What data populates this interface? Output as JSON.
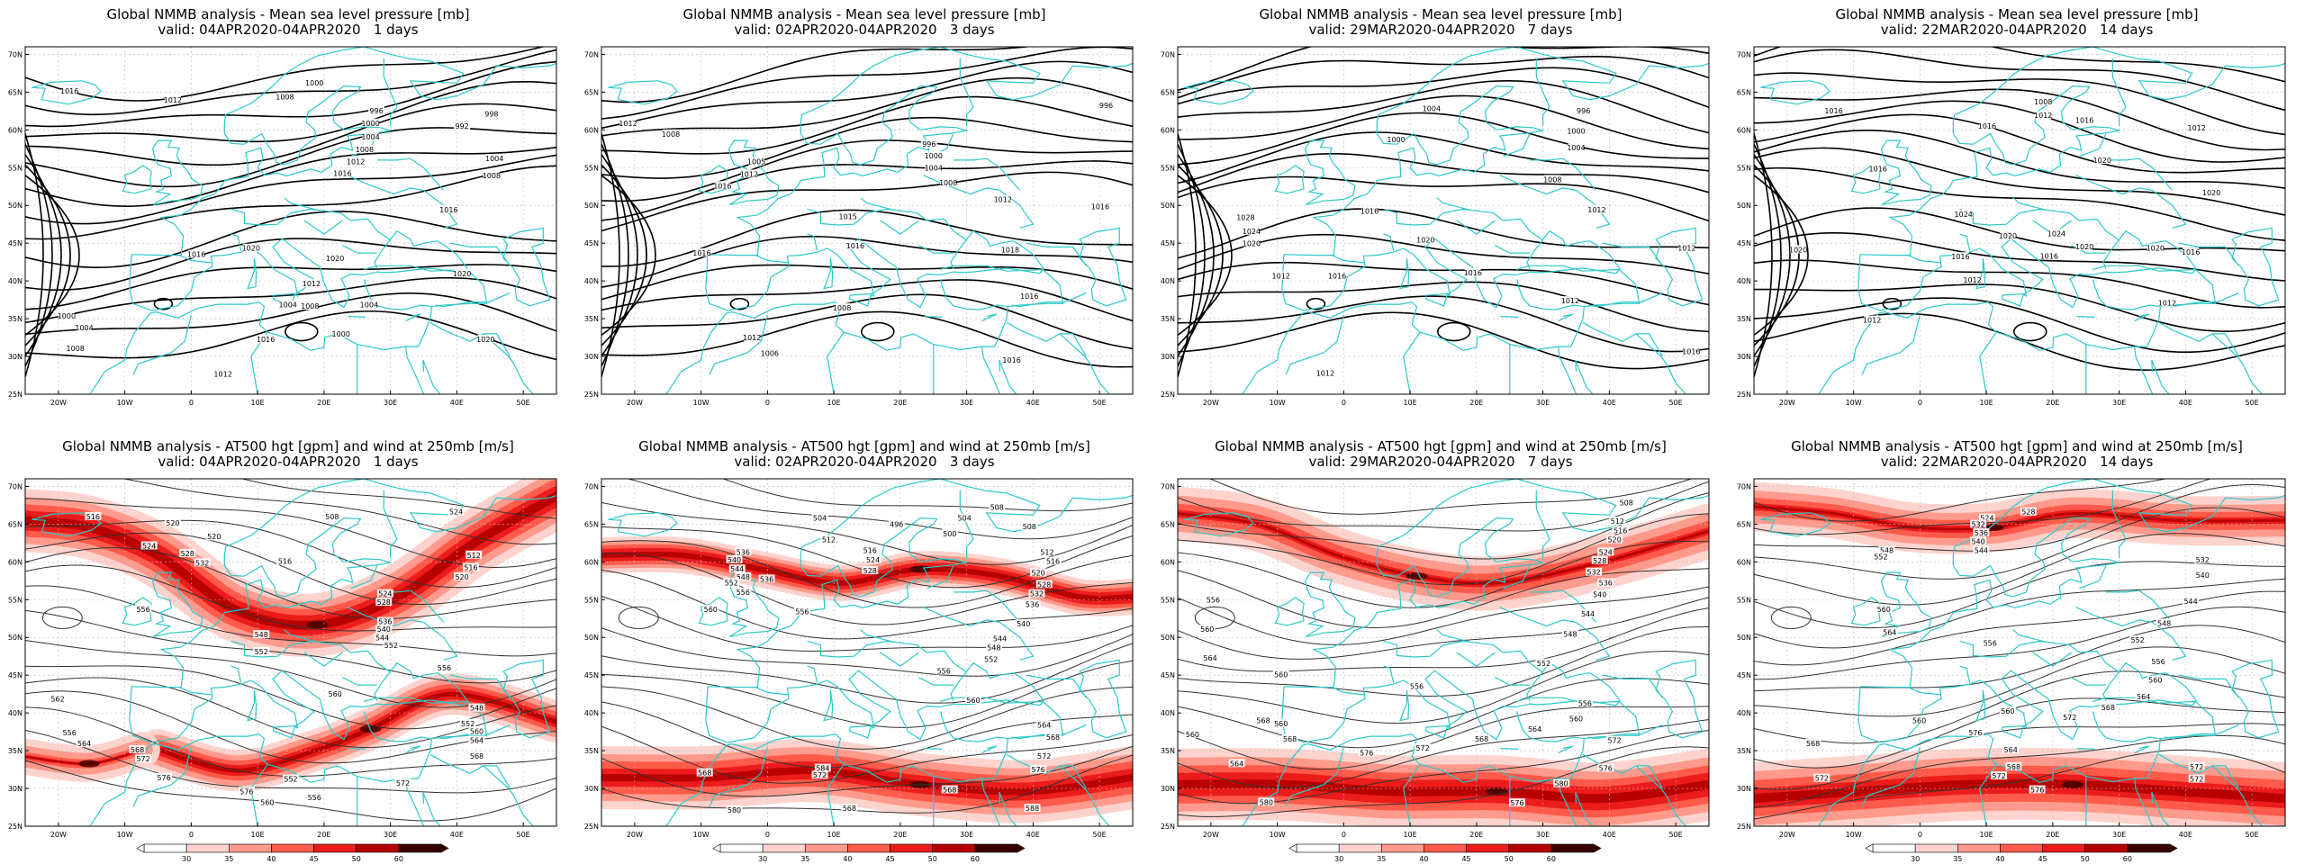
{
  "panels": [
    {
      "title": "Global NMMB analysis - Mean sea level pressure [mb]",
      "valid": "valid: 04APR2020-04APR2020   1 days",
      "kind": "mslp",
      "labels": [
        [
          "1016",
          30,
          58
        ],
        [
          "1012",
          100,
          70
        ],
        [
          "1000",
          196,
          48
        ],
        [
          "1008",
          176,
          66
        ],
        [
          "996",
          238,
          84
        ],
        [
          "1000",
          234,
          100
        ],
        [
          "1004",
          234,
          118
        ],
        [
          "1008",
          230,
          134
        ],
        [
          "1012",
          224,
          150
        ],
        [
          "1016",
          215,
          165
        ],
        [
          "1020",
          153,
          262
        ],
        [
          "1016",
          116,
          270
        ],
        [
          "1020",
          210,
          275
        ],
        [
          "1020",
          296,
          295
        ],
        [
          "1012",
          194,
          308
        ],
        [
          "1004",
          233,
          335
        ],
        [
          "1000",
          214,
          373
        ],
        [
          "1008",
          193,
          337
        ],
        [
          "1016",
          163,
          380
        ],
        [
          "1008",
          34,
          392
        ],
        [
          "1000",
          28,
          350
        ],
        [
          "1004",
          40,
          365
        ],
        [
          "1012",
          134,
          425
        ],
        [
          "1020",
          312,
          380
        ],
        [
          "998",
          316,
          88
        ],
        [
          "992",
          296,
          104
        ],
        [
          "1004",
          318,
          146
        ],
        [
          "1008",
          316,
          168
        ],
        [
          "1016",
          287,
          212
        ],
        [
          "1004",
          178,
          335
        ]
      ]
    },
    {
      "title": "Global NMMB analysis - Mean sea level pressure [mb]",
      "valid": "valid: 02APR2020-04APR2020   3 days",
      "kind": "mslp",
      "labels": [
        [
          "1012",
          18,
          100
        ],
        [
          "1008",
          47,
          114
        ],
        [
          "1005",
          105,
          150
        ],
        [
          "1012",
          100,
          166
        ],
        [
          "1016",
          82,
          181
        ],
        [
          "996",
          222,
          127
        ],
        [
          "1000",
          225,
          142
        ],
        [
          "1004",
          225,
          158
        ],
        [
          "1008",
          235,
          177
        ],
        [
          "1012",
          272,
          199
        ],
        [
          "1016",
          338,
          208
        ],
        [
          "996",
          342,
          77
        ],
        [
          "1015",
          167,
          221
        ],
        [
          "1016",
          172,
          259
        ],
        [
          "1018",
          277,
          264
        ],
        [
          "1016",
          68,
          268
        ],
        [
          "1016",
          290,
          324
        ],
        [
          "1008",
          163,
          339
        ],
        [
          "1006",
          114,
          398
        ],
        [
          "1012",
          102,
          378
        ],
        [
          "1016",
          278,
          407
        ]
      ]
    },
    {
      "title": "Global NMMB analysis - Mean sea level pressure [mb]",
      "valid": "valid: 29MAR2020-04APR2020   7 days",
      "kind": "mslp",
      "labels": [
        [
          "1004",
          172,
          81
        ],
        [
          "1000",
          148,
          121
        ],
        [
          "1004",
          270,
          132
        ],
        [
          "1000",
          270,
          110
        ],
        [
          "996",
          275,
          84
        ],
        [
          "1008",
          254,
          173
        ],
        [
          "1012",
          284,
          212
        ],
        [
          "1016",
          130,
          214
        ],
        [
          "1028",
          46,
          222
        ],
        [
          "1024",
          50,
          240
        ],
        [
          "1020",
          50,
          256
        ],
        [
          "1020",
          168,
          251
        ],
        [
          "1016",
          200,
          294
        ],
        [
          "1016",
          108,
          298
        ],
        [
          "1012",
          70,
          298
        ],
        [
          "1012",
          266,
          330
        ],
        [
          "1012",
          100,
          424
        ],
        [
          "1016",
          348,
          396
        ],
        [
          "1012",
          345,
          262
        ]
      ]
    },
    {
      "title": "Global NMMB analysis - Mean sea level pressure [mb]",
      "valid": "valid: 22MAR2020-04APR2020   14 days",
      "kind": "mslp",
      "labels": [
        [
          "1016",
          54,
          84
        ],
        [
          "1012",
          196,
          90
        ],
        [
          "1008",
          196,
          72
        ],
        [
          "1016",
          158,
          104
        ],
        [
          "1016",
          224,
          96
        ],
        [
          "1012",
          300,
          106
        ],
        [
          "1016",
          84,
          159
        ],
        [
          "1020",
          236,
          148
        ],
        [
          "1020",
          310,
          190
        ],
        [
          "1024",
          142,
          218
        ],
        [
          "1020",
          172,
          246
        ],
        [
          "1024",
          205,
          243
        ],
        [
          "1020",
          224,
          260
        ],
        [
          "1020",
          272,
          262
        ],
        [
          "1016",
          296,
          267
        ],
        [
          "1016",
          140,
          273
        ],
        [
          "1016",
          200,
          272
        ],
        [
          "1012",
          80,
          355
        ],
        [
          "1012",
          148,
          303
        ],
        [
          "1012",
          280,
          333
        ],
        [
          "1020",
          30,
          264
        ]
      ]
    },
    {
      "title": "Global NMMB analysis - AT500 hgt [gpm] and wind at 250mb [m/s]",
      "valid": "valid: 04APR2020-04APR2020   1 days",
      "kind": "hgt",
      "labels": [
        [
          "516",
          46,
          50
        ],
        [
          "520",
          100,
          58
        ],
        [
          "508",
          208,
          50
        ],
        [
          "524",
          292,
          44
        ],
        [
          "512",
          304,
          100
        ],
        [
          "516",
          302,
          116
        ],
        [
          "520",
          296,
          128
        ],
        [
          "524",
          244,
          150
        ],
        [
          "528",
          243,
          161
        ],
        [
          "536",
          244,
          186
        ],
        [
          "540",
          243,
          196
        ],
        [
          "544",
          242,
          207
        ],
        [
          "552",
          248,
          217
        ],
        [
          "556",
          284,
          246
        ],
        [
          "560",
          210,
          280
        ],
        [
          "556",
          80,
          170
        ],
        [
          "548",
          160,
          203
        ],
        [
          "552",
          160,
          225
        ],
        [
          "562",
          22,
          286
        ],
        [
          "564",
          40,
          344
        ],
        [
          "568",
          76,
          352
        ],
        [
          "572",
          80,
          364
        ],
        [
          "576",
          94,
          388
        ],
        [
          "556",
          30,
          330
        ],
        [
          "548",
          306,
          298
        ],
        [
          "552",
          300,
          318
        ],
        [
          "560",
          306,
          328
        ],
        [
          "564",
          306,
          340
        ],
        [
          "568",
          306,
          360
        ],
        [
          "572",
          256,
          395
        ],
        [
          "576",
          150,
          406
        ],
        [
          "560",
          164,
          420
        ],
        [
          "532",
          120,
          110
        ],
        [
          "528",
          110,
          98
        ],
        [
          "524",
          84,
          88
        ],
        [
          "520",
          128,
          76
        ],
        [
          "516",
          176,
          108
        ],
        [
          "552",
          180,
          390
        ],
        [
          "556",
          196,
          414
        ]
      ],
      "colorbar": [
        "30",
        "35",
        "40",
        "45",
        "50",
        "60"
      ]
    },
    {
      "title": "Global NMMB analysis - AT500 hgt [gpm] and wind at 250mb [m/s]",
      "valid": "valid: 02APR2020-04APR2020   3 days",
      "kind": "hgt",
      "labels": [
        [
          "504",
          148,
          52
        ],
        [
          "508",
          268,
          38
        ],
        [
          "496",
          200,
          60
        ],
        [
          "500",
          236,
          72
        ],
        [
          "512",
          154,
          80
        ],
        [
          "516",
          182,
          94
        ],
        [
          "524",
          184,
          106
        ],
        [
          "528",
          182,
          120
        ],
        [
          "536",
          96,
          96
        ],
        [
          "540",
          90,
          106
        ],
        [
          "544",
          92,
          118
        ],
        [
          "548",
          96,
          128
        ],
        [
          "552",
          88,
          136
        ],
        [
          "556",
          96,
          148
        ],
        [
          "536",
          112,
          131
        ],
        [
          "508",
          290,
          63
        ],
        [
          "504",
          246,
          52
        ],
        [
          "512",
          302,
          96
        ],
        [
          "516",
          306,
          108
        ],
        [
          "520",
          296,
          123
        ],
        [
          "528",
          300,
          138
        ],
        [
          "532",
          295,
          150
        ],
        [
          "536",
          292,
          164
        ],
        [
          "540",
          286,
          189
        ],
        [
          "544",
          270,
          208
        ],
        [
          "548",
          266,
          220
        ],
        [
          "552",
          264,
          235
        ],
        [
          "556",
          232,
          250
        ],
        [
          "560",
          252,
          288
        ],
        [
          "556",
          136,
          173
        ],
        [
          "560",
          74,
          170
        ],
        [
          "564",
          300,
          320
        ],
        [
          "568",
          306,
          336
        ],
        [
          "572",
          300,
          360
        ],
        [
          "576",
          296,
          378
        ],
        [
          "568",
          70,
          382
        ],
        [
          "572",
          148,
          385
        ],
        [
          "568",
          168,
          428
        ],
        [
          "580",
          90,
          430
        ],
        [
          "584",
          150,
          376
        ],
        [
          "568",
          236,
          404
        ],
        [
          "588",
          292,
          428
        ]
      ],
      "colorbar": [
        "30",
        "35",
        "40",
        "45",
        "50",
        "60"
      ]
    },
    {
      "title": "Global NMMB analysis - AT500 hgt [gpm] and wind at 250mb [m/s]",
      "valid": "valid: 29MAR2020-04APR2020   7 days",
      "kind": "hgt",
      "labels": [
        [
          "508",
          304,
          32
        ],
        [
          "512",
          298,
          56
        ],
        [
          "516",
          300,
          68
        ],
        [
          "520",
          296,
          80
        ],
        [
          "524",
          290,
          96
        ],
        [
          "528",
          286,
          107
        ],
        [
          "532",
          282,
          122
        ],
        [
          "536",
          290,
          136
        ],
        [
          "540",
          286,
          151
        ],
        [
          "544",
          278,
          176
        ],
        [
          "548",
          266,
          202
        ],
        [
          "552",
          248,
          240
        ],
        [
          "556",
          276,
          292
        ],
        [
          "560",
          270,
          312
        ],
        [
          "564",
          242,
          325
        ],
        [
          "568",
          206,
          338
        ],
        [
          "572",
          166,
          350
        ],
        [
          "576",
          128,
          356
        ],
        [
          "580",
          60,
          420
        ],
        [
          "568",
          76,
          338
        ],
        [
          "564",
          40,
          370
        ],
        [
          "560",
          10,
          332
        ],
        [
          "556",
          162,
          270
        ],
        [
          "560",
          70,
          318
        ],
        [
          "556",
          24,
          158
        ],
        [
          "560",
          20,
          196
        ],
        [
          "564",
          22,
          233
        ],
        [
          "568",
          58,
          314
        ],
        [
          "572",
          296,
          340
        ],
        [
          "576",
          290,
          376
        ],
        [
          "580",
          260,
          396
        ],
        [
          "576",
          230,
          421
        ],
        [
          "560",
          70,
          255
        ]
      ],
      "colorbar": [
        "30",
        "35",
        "40",
        "45",
        "50",
        "60"
      ]
    },
    {
      "title": "Global NMMB analysis - AT500 hgt [gpm] and wind at 250mb [m/s]",
      "valid": "valid: 22MAR2020-04APR2020   14 days",
      "kind": "hgt",
      "labels": [
        [
          "528",
          186,
          44
        ],
        [
          "524",
          158,
          52
        ],
        [
          "532",
          152,
          60
        ],
        [
          "536",
          154,
          71
        ],
        [
          "540",
          152,
          82
        ],
        [
          "544",
          154,
          94
        ],
        [
          "548",
          90,
          94
        ],
        [
          "552",
          86,
          102
        ],
        [
          "532",
          304,
          106
        ],
        [
          "540",
          304,
          126
        ],
        [
          "544",
          296,
          160
        ],
        [
          "548",
          278,
          188
        ],
        [
          "552",
          260,
          210
        ],
        [
          "556",
          274,
          238
        ],
        [
          "560",
          272,
          262
        ],
        [
          "564",
          264,
          283
        ],
        [
          "568",
          240,
          297
        ],
        [
          "572",
          214,
          310
        ],
        [
          "576",
          150,
          330
        ],
        [
          "556",
          160,
          214
        ],
        [
          "560",
          88,
          170
        ],
        [
          "564",
          92,
          200
        ],
        [
          "568",
          40,
          344
        ],
        [
          "572",
          46,
          389
        ],
        [
          "564",
          174,
          352
        ],
        [
          "568",
          176,
          374
        ],
        [
          "572",
          166,
          386
        ],
        [
          "576",
          192,
          404
        ],
        [
          "560",
          172,
          302
        ],
        [
          "560",
          112,
          314
        ],
        [
          "572",
          300,
          374
        ],
        [
          "572",
          300,
          390
        ]
      ],
      "colorbar": [
        "30",
        "35",
        "40",
        "45",
        "50",
        "60"
      ]
    }
  ],
  "lat_ticks": [
    "70N",
    "65N",
    "60N",
    "55N",
    "50N",
    "45N",
    "40N",
    "35N",
    "30N",
    "25N"
  ],
  "lon_ticks": [
    "20W",
    "10W",
    "0",
    "10E",
    "20E",
    "30E",
    "40E",
    "50E"
  ],
  "colors": {
    "coast": "#2ec8c8",
    "contour_mslp": "#000000",
    "contour_hgt": "#333333",
    "jet1": "#ffd3cd",
    "jet2": "#ff9a8c",
    "jet3": "#ff5a4a",
    "jet4": "#ec1c1c",
    "jet5": "#b80000",
    "jet6": "#3a0000"
  }
}
